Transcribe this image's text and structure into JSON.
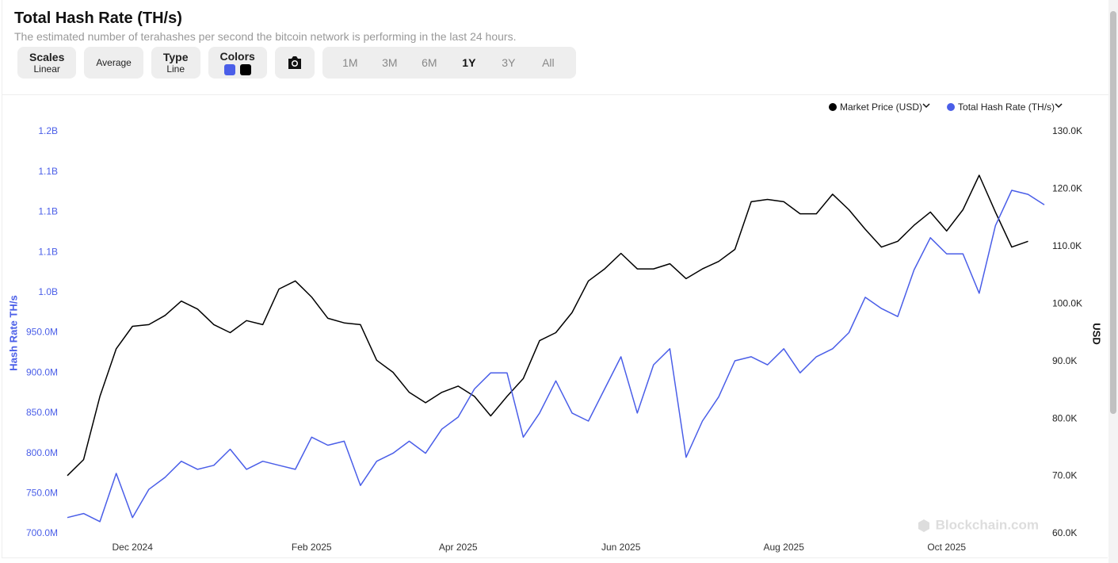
{
  "header": {
    "title": "Total Hash Rate (TH/s)",
    "subtitle": "The estimated number of terahashes per second the bitcoin network is performing in the last 24 hours."
  },
  "toolbar": {
    "scales": {
      "label": "Scales",
      "value": "Linear"
    },
    "average": "Average",
    "type": {
      "label": "Type",
      "value": "Line"
    },
    "colors": "Colors",
    "ranges": [
      "1M",
      "3M",
      "6M",
      "1Y",
      "3Y",
      "All"
    ],
    "active_range": "1Y"
  },
  "watermark": "Blockchain.com",
  "chart_data": {
    "type": "line",
    "y_label": "Hash Rate TH/s",
    "y2_label": "USD",
    "categories": [
      null,
      null,
      null,
      null,
      "Dec 2024",
      null,
      null,
      null,
      null,
      null,
      null,
      null,
      null,
      null,
      null,
      "Feb 2025",
      null,
      null,
      null,
      null,
      null,
      null,
      null,
      null,
      "Apr 2025",
      null,
      null,
      null,
      null,
      null,
      null,
      null,
      null,
      null,
      "Jun 2025",
      null,
      null,
      null,
      null,
      null,
      null,
      null,
      null,
      null,
      "Aug 2025",
      null,
      null,
      null,
      null,
      null,
      null,
      null,
      null,
      null,
      "Oct 2025",
      null,
      null,
      null,
      null,
      null,
      null
    ],
    "series": [
      {
        "name": "Market Price (USD)",
        "color": "#000000",
        "axis": "y2",
        "values": [
          70100,
          72900,
          83900,
          92200,
          96100,
          96400,
          98000,
          100500,
          99100,
          96400,
          95000,
          97100,
          96400,
          102600,
          104000,
          101200,
          97500,
          96700,
          96400,
          90200,
          88100,
          84600,
          82800,
          84600,
          85700,
          83900,
          80500,
          83900,
          87000,
          93600,
          95000,
          98500,
          104000,
          106100,
          108800,
          106100,
          106100,
          107000,
          104400,
          106100,
          107400,
          109500,
          117800,
          118200,
          117800,
          115700,
          115700,
          119100,
          116400,
          113000,
          109900,
          110900,
          113700,
          116000,
          112700,
          116400,
          122400,
          116000,
          109900,
          110900,
          null
        ]
      },
      {
        "name": "Total Hash Rate (TH/s)",
        "color": "#4a5ee8",
        "values": [
          720000000,
          725000000,
          715000000,
          775000000,
          720000000,
          755000000,
          770000000,
          790000000,
          780000000,
          785000000,
          805000000,
          780000000,
          790000000,
          785000000,
          780000000,
          820000000,
          810000000,
          815000000,
          760000000,
          790000000,
          800000000,
          815000000,
          800000000,
          830000000,
          845000000,
          880000000,
          900000000,
          900000000,
          820000000,
          850000000,
          890000000,
          850000000,
          840000000,
          880000000,
          920000000,
          850000000,
          910000000,
          930000000,
          795000000,
          840000000,
          870000000,
          915000000,
          920000000,
          910000000,
          930000000,
          900000000,
          920000000,
          930000000,
          950000000,
          994000000,
          980000000,
          970000000,
          1028000000,
          1068000000,
          1048000000,
          1048000000,
          999000000,
          1083000000,
          1127000000,
          1122000000,
          1109000000
        ]
      }
    ],
    "ylim": [
      700000000,
      1200000000
    ],
    "yticks": [
      {
        "value": 700000000,
        "label": "700.0M"
      },
      {
        "value": 750000000,
        "label": "750.0M"
      },
      {
        "value": 800000000,
        "label": "800.0M"
      },
      {
        "value": 850000000,
        "label": "850.0M"
      },
      {
        "value": 900000000,
        "label": "900.0M"
      },
      {
        "value": 950000000,
        "label": "950.0M"
      },
      {
        "value": 1000000000,
        "label": "1.0B"
      },
      {
        "value": 1050000000,
        "label": "1.1B"
      },
      {
        "value": 1100000000,
        "label": "1.1B"
      },
      {
        "value": 1150000000,
        "label": "1.1B"
      },
      {
        "value": 1200000000,
        "label": "1.2B"
      }
    ],
    "y2lim": [
      60000,
      130000
    ],
    "y2ticks": [
      {
        "value": 60000,
        "label": "60.0K"
      },
      {
        "value": 70000,
        "label": "70.0K"
      },
      {
        "value": 80000,
        "label": "80.0K"
      },
      {
        "value": 90000,
        "label": "90.0K"
      },
      {
        "value": 100000,
        "label": "100.0K"
      },
      {
        "value": 110000,
        "label": "110.0K"
      },
      {
        "value": 120000,
        "label": "120.0K"
      },
      {
        "value": 130000,
        "label": "130.0K"
      }
    ],
    "grid": false,
    "legend": "top-right"
  }
}
